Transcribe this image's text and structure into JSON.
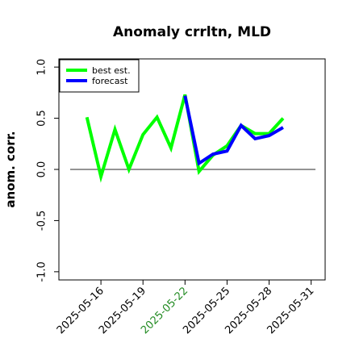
{
  "chart_data": {
    "type": "line",
    "title": "Anomaly crrltn, MLD",
    "xlabel": "",
    "ylabel": "anom. corr.",
    "x_dates": [
      "2025-05-14",
      "2025-05-15",
      "2025-05-16",
      "2025-05-17",
      "2025-05-18",
      "2025-05-19",
      "2025-05-20",
      "2025-05-21",
      "2025-05-22",
      "2025-05-23",
      "2025-05-24",
      "2025-05-25",
      "2025-05-26",
      "2025-05-27",
      "2025-05-28",
      "2025-05-29",
      "2025-05-30"
    ],
    "xlim": [
      "2025-05-13",
      "2025-06-01"
    ],
    "ylim": [
      -1.08,
      1.08
    ],
    "x_ticks": [
      "2025-05-16",
      "2025-05-19",
      "2025-05-22",
      "2025-05-25",
      "2025-05-28",
      "2025-05-31"
    ],
    "highlight_tick": "2025-05-22",
    "y_ticks": [
      -1.0,
      -0.5,
      0.0,
      0.5,
      1.0
    ],
    "y_tick_labels": [
      "-1.0",
      "-0.5",
      "0.0",
      "0.5",
      "1.0"
    ],
    "zero_line": {
      "y": 0.0,
      "from": "2025-05-13",
      "to": "2025-06-01",
      "color": "#555555"
    },
    "series": [
      {
        "name": "best est.",
        "color": "#00ff00",
        "dates": [
          "2025-05-15",
          "2025-05-16",
          "2025-05-17",
          "2025-05-18",
          "2025-05-19",
          "2025-05-20",
          "2025-05-21",
          "2025-05-22",
          "2025-05-23",
          "2025-05-24",
          "2025-05-25",
          "2025-05-26",
          "2025-05-27",
          "2025-05-28",
          "2025-05-29"
        ],
        "values": [
          0.51,
          -0.07,
          0.39,
          0.0,
          0.34,
          0.51,
          0.21,
          0.73,
          -0.02,
          0.14,
          0.23,
          0.43,
          0.35,
          0.35,
          0.5
        ]
      },
      {
        "name": "forecast",
        "color": "#0000ff",
        "dates": [
          "2025-05-22",
          "2025-05-23",
          "2025-05-24",
          "2025-05-25",
          "2025-05-26",
          "2025-05-27",
          "2025-05-28",
          "2025-05-29"
        ],
        "values": [
          0.72,
          0.06,
          0.15,
          0.18,
          0.43,
          0.3,
          0.33,
          0.41
        ]
      }
    ],
    "grid": false,
    "legend_position": "top-left",
    "highlight_tick_color": "#228b22"
  }
}
